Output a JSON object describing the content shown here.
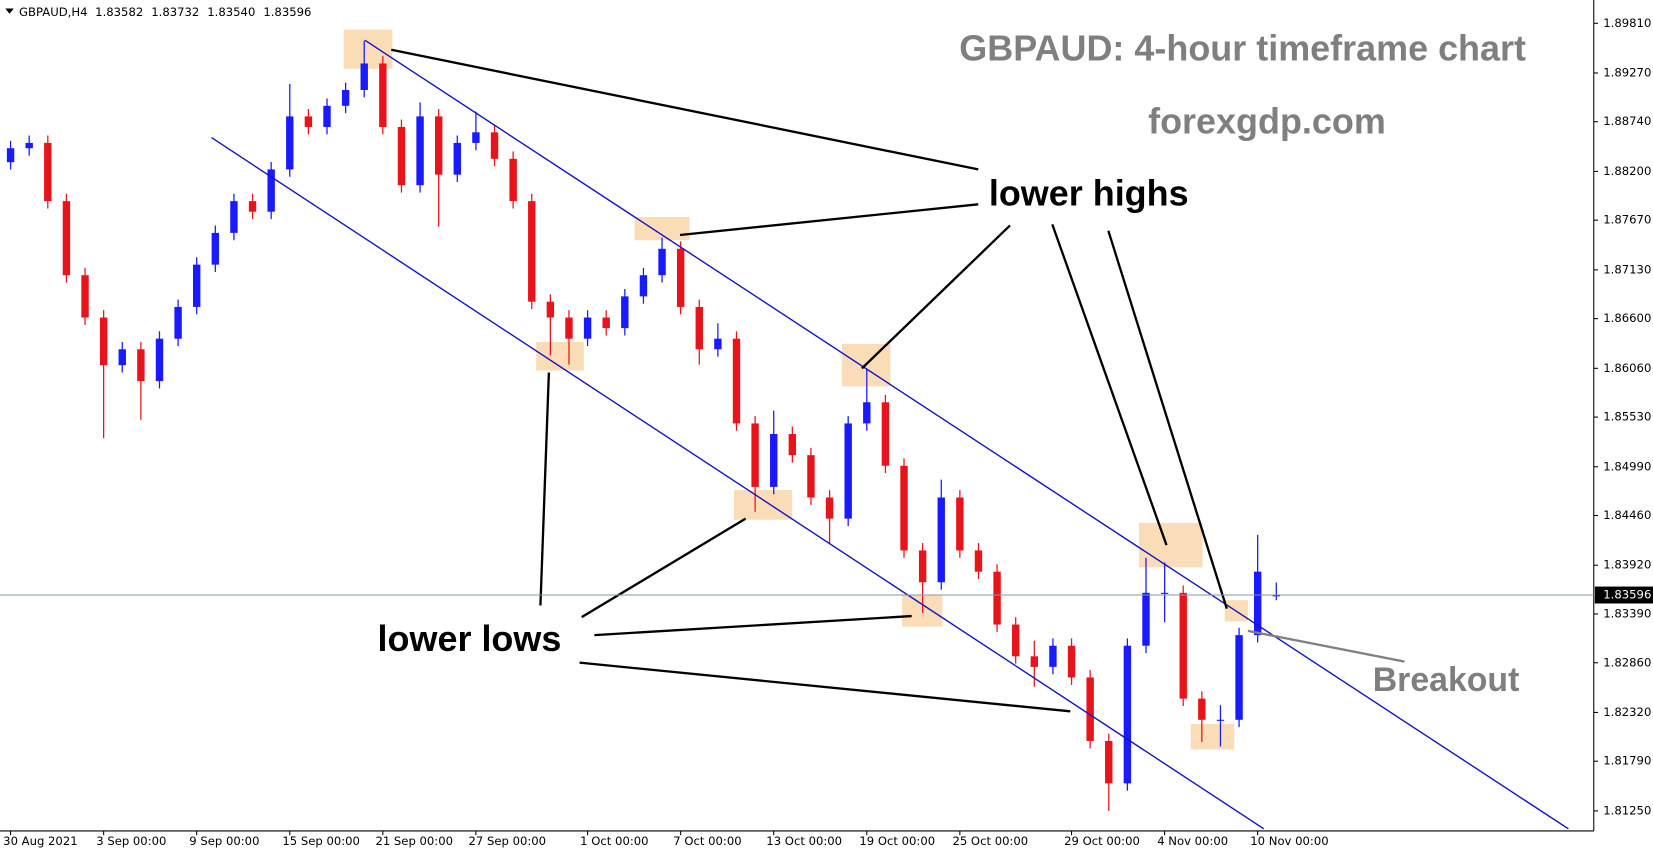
{
  "chart_data": {
    "type": "candlestick",
    "symbol": "GBPAUD,H4",
    "ohlc_labels": [
      "1.83582",
      "1.83732",
      "1.83540",
      "1.83596"
    ],
    "title": "GBPAUD: 4-hour timeframe chart",
    "subtitle": "forexgdp.com",
    "annotations": {
      "highs": "lower highs",
      "lows": "lower lows",
      "breakout": "Breakout"
    },
    "bull_color": "#1a1aff",
    "bear_color": "#e8141c",
    "categories": [
      "30 Aug 2021",
      null,
      null,
      null,
      null,
      "3 Sep 00:00",
      null,
      null,
      null,
      null,
      "9 Sep 00:00",
      null,
      null,
      null,
      null,
      "15 Sep 00:00",
      null,
      null,
      null,
      null,
      "21 Sep 00:00",
      null,
      null,
      null,
      null,
      "27 Sep 00:00",
      null,
      null,
      null,
      null,
      null,
      "1 Oct 00:00",
      null,
      null,
      null,
      null,
      "7 Oct 00:00",
      null,
      null,
      null,
      null,
      "13 Oct 00:00",
      null,
      null,
      null,
      null,
      "19 Oct 00:00",
      null,
      null,
      null,
      null,
      "25 Oct 00:00",
      null,
      null,
      null,
      null,
      null,
      "29 Oct 00:00",
      null,
      null,
      null,
      null,
      "4 Nov 00:00",
      null,
      null,
      null,
      null,
      "10 Nov 00:00",
      null
    ],
    "open": [
      1.883,
      1.88452,
      1.8851,
      1.87877,
      1.87072,
      1.86612,
      1.86094,
      1.86267,
      1.85921,
      1.86382,
      1.86727,
      1.87187,
      1.87532,
      1.87877,
      1.87762,
      1.88222,
      1.88798,
      1.88683,
      1.88913,
      1.89085,
      1.89373,
      1.88683,
      1.8805,
      1.88798,
      1.88165,
      1.8851,
      1.88625,
      1.88337,
      1.87877,
      1.86784,
      1.86612,
      1.86382,
      1.86612,
      1.86497,
      1.86842,
      1.87072,
      1.87359,
      1.86727,
      1.86267,
      1.86382,
      1.85461,
      1.84771,
      1.85346,
      1.85116,
      1.84656,
      1.84426,
      1.85461,
      1.85691,
      1.85001,
      1.84081,
      1.83735,
      1.84656,
      1.84081,
      1.8385,
      1.83275,
      1.8293,
      1.82815,
      1.83045,
      1.827,
      1.8201,
      1.81549,
      1.83045,
      1.8362,
      1.8362,
      1.8247,
      1.8224,
      1.8224,
      1.8316,
      1.83582
    ],
    "high": [
      1.88532,
      1.8859,
      1.8859,
      1.87957,
      1.87152,
      1.86692,
      1.86347,
      1.86347,
      1.86462,
      1.86807,
      1.87267,
      1.87612,
      1.87957,
      1.87957,
      1.88302,
      1.8915,
      1.88878,
      1.88993,
      1.89165,
      1.8962,
      1.89453,
      1.88763,
      1.8895,
      1.88878,
      1.8859,
      1.8885,
      1.88705,
      1.88417,
      1.87957,
      1.86864,
      1.86692,
      1.86692,
      1.86692,
      1.86922,
      1.87152,
      1.8748,
      1.87439,
      1.86807,
      1.8655,
      1.86462,
      1.85541,
      1.856,
      1.85426,
      1.85196,
      1.84736,
      1.85541,
      1.8605,
      1.85771,
      1.85081,
      1.84161,
      1.8485,
      1.84736,
      1.84161,
      1.8393,
      1.83355,
      1.831,
      1.83125,
      1.83125,
      1.8278,
      1.8209,
      1.83125,
      1.84,
      1.8395,
      1.837,
      1.8255,
      1.824,
      1.8324,
      1.8425,
      1.83732
    ],
    "low": [
      1.8822,
      1.88372,
      1.87797,
      1.86992,
      1.86532,
      1.853,
      1.86014,
      1.855,
      1.85841,
      1.86302,
      1.86647,
      1.87107,
      1.87452,
      1.87682,
      1.87682,
      1.88142,
      1.88603,
      1.88603,
      1.88833,
      1.89005,
      1.88603,
      1.8797,
      1.8797,
      1.876,
      1.88085,
      1.8843,
      1.88257,
      1.87797,
      1.86704,
      1.862,
      1.861,
      1.86302,
      1.86417,
      1.86417,
      1.86762,
      1.86992,
      1.86647,
      1.861,
      1.86187,
      1.85381,
      1.845,
      1.84691,
      1.85036,
      1.84576,
      1.8415,
      1.84346,
      1.85381,
      1.84921,
      1.84001,
      1.834,
      1.83655,
      1.84001,
      1.8377,
      1.83195,
      1.8285,
      1.826,
      1.82735,
      1.8262,
      1.8193,
      1.8125,
      1.81469,
      1.82965,
      1.833,
      1.8239,
      1.82,
      1.8195,
      1.8216,
      1.8308,
      1.8354
    ],
    "close": [
      1.88452,
      1.8851,
      1.87877,
      1.87072,
      1.86612,
      1.86094,
      1.86267,
      1.85921,
      1.86382,
      1.86727,
      1.87187,
      1.87532,
      1.87877,
      1.87762,
      1.88222,
      1.88798,
      1.88683,
      1.88913,
      1.89085,
      1.89373,
      1.88683,
      1.8805,
      1.88798,
      1.88165,
      1.8851,
      1.88625,
      1.88337,
      1.87877,
      1.86784,
      1.86612,
      1.86382,
      1.86612,
      1.86497,
      1.86842,
      1.87072,
      1.87359,
      1.86727,
      1.86267,
      1.86382,
      1.85461,
      1.84771,
      1.85346,
      1.85116,
      1.84656,
      1.84426,
      1.85461,
      1.85691,
      1.85001,
      1.84081,
      1.83735,
      1.84656,
      1.84081,
      1.8385,
      1.83275,
      1.8293,
      1.82815,
      1.83045,
      1.827,
      1.8201,
      1.81549,
      1.83045,
      1.8362,
      1.8362,
      1.8247,
      1.8224,
      1.8224,
      1.8316,
      1.8385,
      1.83596
    ],
    "ylim": [
      1.81032,
      1.90063
    ],
    "yticks": [
      {
        "value": 1.8981,
        "label": "1.89810"
      },
      {
        "value": 1.8927,
        "label": "1.89270"
      },
      {
        "value": 1.8874,
        "label": "1.88740"
      },
      {
        "value": 1.882,
        "label": "1.88200"
      },
      {
        "value": 1.8767,
        "label": "1.87670"
      },
      {
        "value": 1.8713,
        "label": "1.87130"
      },
      {
        "value": 1.866,
        "label": "1.86600"
      },
      {
        "value": 1.8606,
        "label": "1.86060"
      },
      {
        "value": 1.8553,
        "label": "1.85530"
      },
      {
        "value": 1.8499,
        "label": "1.84990"
      },
      {
        "value": 1.8446,
        "label": "1.84460"
      },
      {
        "value": 1.8392,
        "label": "1.83920"
      },
      {
        "value": 1.8339,
        "label": "1.83390"
      },
      {
        "value": 1.8286,
        "label": "1.82860"
      },
      {
        "value": 1.8232,
        "label": "1.82320"
      },
      {
        "value": 1.8179,
        "label": "1.81790"
      },
      {
        "value": 1.8125,
        "label": "1.81250"
      }
    ]
  }
}
